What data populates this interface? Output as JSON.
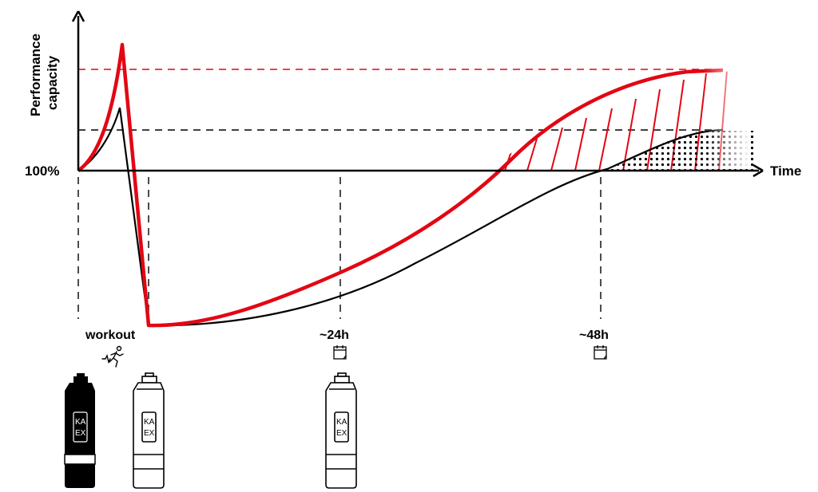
{
  "axes": {
    "y_label_line1": "Performance",
    "y_label_line2": "capacity",
    "baseline_label": "100%",
    "x_label": "Time"
  },
  "markers": {
    "workout": "workout",
    "h24": "~24h",
    "h48": "~48h"
  },
  "bottles": {
    "brand_line1": "KA",
    "brand_line2": "EX"
  },
  "icons": [
    "running-person-icon",
    "calendar-icon",
    "calendar-icon",
    "bottle-icon"
  ],
  "colors": {
    "accent": "#e30613",
    "ink": "#000000",
    "background": "#ffffff"
  }
}
